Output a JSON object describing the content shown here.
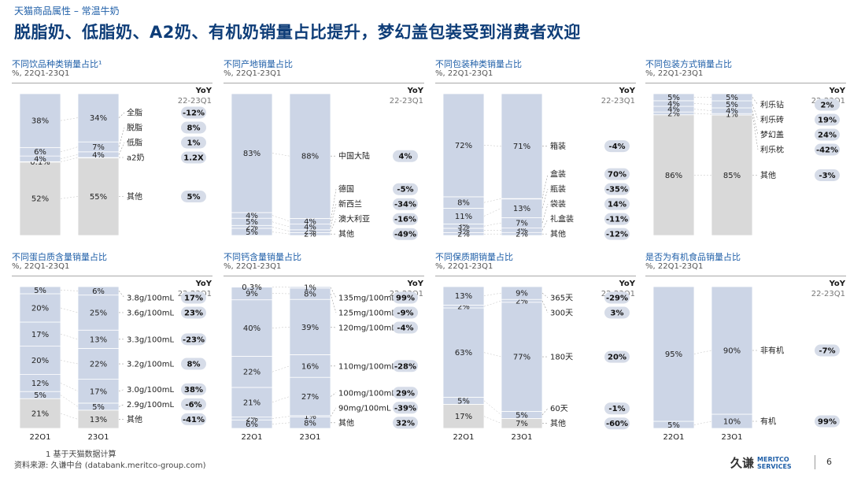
{
  "header": {
    "breadcrumb": "天猫商品属性 – 常温牛奶",
    "title": "脱脂奶、低脂奶、A2奶、有机奶销量占比提升，梦幻盖包装受到消费者欢迎"
  },
  "footer": {
    "footnote": "1   基于天猫数据计算",
    "source": "资料来源: 久谦中台 (databank.meritco-group.com)",
    "logo_cn": "久谦",
    "logo_en_1": "MERITCO",
    "logo_en_2": "SERVICES",
    "page": "6"
  },
  "colors": {
    "bar": "#ccd5e6",
    "bar_alt": "#d9d9d9",
    "pill": "#d6dce8",
    "accent": "#1f5fa8"
  },
  "chart_data": [
    {
      "type": "stacked_bar",
      "title": "不同饮品种类销量占比¹",
      "subtitle": "%, 22Q1-23Q1",
      "yoy_header": "YoY",
      "yoy_period": "22-23Q1",
      "x": [
        "22Q1",
        "23Q1"
      ],
      "show_x": false,
      "segments": [
        {
          "name": "其他",
          "values": [
            52,
            55
          ],
          "labels": [
            "52%",
            "55%"
          ],
          "yoy": "5%",
          "grey": true
        },
        {
          "name": "a2奶",
          "values": [
            0.1,
            0
          ],
          "labels": [
            "0.1%",
            ""
          ],
          "yoy": "1.2X"
        },
        {
          "name": "低脂",
          "values": [
            4,
            4
          ],
          "labels": [
            "4%",
            "4%"
          ],
          "yoy": "1%"
        },
        {
          "name": "脱脂",
          "values": [
            6,
            7
          ],
          "labels": [
            "6%",
            "7%"
          ],
          "yoy": "8%"
        },
        {
          "name": "全脂",
          "values": [
            38,
            34
          ],
          "labels": [
            "38%",
            "34%"
          ],
          "yoy": "-12%"
        }
      ]
    },
    {
      "type": "stacked_bar",
      "title": "不同产地销量占比",
      "subtitle": "%, 22Q1-23Q1",
      "yoy_header": "YoY",
      "yoy_period": "22-23Q1",
      "x": [
        "22Q1",
        "23Q1"
      ],
      "show_x": false,
      "segments": [
        {
          "name": "其他",
          "values": [
            5,
            2
          ],
          "labels": [
            "5%",
            "2%"
          ],
          "yoy": "-49%"
        },
        {
          "name": "澳大利亚",
          "values": [
            2,
            2
          ],
          "labels": [
            "2%",
            "2%"
          ],
          "yoy": "-16%"
        },
        {
          "name": "新西兰",
          "values": [
            5,
            4
          ],
          "labels": [
            "5%",
            "4%"
          ],
          "yoy": "-34%"
        },
        {
          "name": "德国",
          "values": [
            4,
            4
          ],
          "labels": [
            "4%",
            "4%"
          ],
          "yoy": "-5%"
        },
        {
          "name": "中国大陆",
          "values": [
            83,
            88
          ],
          "labels": [
            "83%",
            "88%"
          ],
          "yoy": "4%"
        }
      ]
    },
    {
      "type": "stacked_bar",
      "title": "不同包装种类销量占比",
      "subtitle": "%, 22Q1-23Q1",
      "yoy_header": "YoY",
      "yoy_period": "22-23Q1",
      "x": [
        "22Q1",
        "23Q1"
      ],
      "show_x": false,
      "segments": [
        {
          "name": "其他",
          "values": [
            2,
            2
          ],
          "labels": [
            "2%",
            "2%"
          ],
          "yoy": "-12%"
        },
        {
          "name": "礼盒装",
          "values": [
            3,
            3
          ],
          "labels": [
            "3%",
            "3%"
          ],
          "yoy": "-11%"
        },
        {
          "name": "袋装",
          "values": [
            3,
            7
          ],
          "labels": [
            "3%",
            "7%"
          ],
          "yoy": "14%"
        },
        {
          "name": "瓶装",
          "values": [
            11,
            13
          ],
          "labels": [
            "11%",
            "13%"
          ],
          "yoy": "-35%"
        },
        {
          "name": "盒装",
          "values": [
            8,
            0
          ],
          "labels": [
            "8%",
            ""
          ],
          "yoy": "70%"
        },
        {
          "name": "箱装",
          "values": [
            72,
            71
          ],
          "labels": [
            "72%",
            "71%"
          ],
          "yoy": "-4%"
        }
      ]
    },
    {
      "type": "stacked_bar",
      "title": "不同包装方式销量占比",
      "subtitle": "%, 22Q1-23Q1",
      "yoy_header": "YoY",
      "yoy_period": "22-23Q1",
      "x": [
        "22Q1",
        "23Q1"
      ],
      "show_x": false,
      "segments": [
        {
          "name": "其他",
          "values": [
            86,
            85
          ],
          "labels": [
            "86%",
            "85%"
          ],
          "yoy": "-3%",
          "grey": true
        },
        {
          "name": "利乐枕",
          "values": [
            2,
            1
          ],
          "labels": [
            "2%",
            "1%"
          ],
          "yoy": "-42%"
        },
        {
          "name": "梦幻盖",
          "values": [
            4,
            4
          ],
          "labels": [
            "4%",
            "4%"
          ],
          "yoy": "24%"
        },
        {
          "name": "利乐砖",
          "values": [
            4,
            5
          ],
          "labels": [
            "4%",
            "5%"
          ],
          "yoy": "19%"
        },
        {
          "name": "利乐钻",
          "values": [
            5,
            5
          ],
          "labels": [
            "5%",
            "5%"
          ],
          "yoy": "2%"
        }
      ]
    },
    {
      "type": "stacked_bar",
      "title": "不同蛋白质含量销量占比",
      "subtitle": "%, 22Q1-23Q1",
      "yoy_header": "YoY",
      "yoy_period": "22-23Q1",
      "x": [
        "22Q1",
        "23Q1"
      ],
      "show_x": true,
      "segments": [
        {
          "name": "其他",
          "values": [
            21,
            13
          ],
          "labels": [
            "21%",
            "13%"
          ],
          "yoy": "-41%",
          "grey": true
        },
        {
          "name": "2.9g/100mL",
          "values": [
            5,
            5
          ],
          "labels": [
            "5%",
            "5%"
          ],
          "yoy": "-6%"
        },
        {
          "name": "3.0g/100mL",
          "values": [
            12,
            17
          ],
          "labels": [
            "12%",
            "17%"
          ],
          "yoy": "38%"
        },
        {
          "name": "3.2g/100mL",
          "values": [
            20,
            22
          ],
          "labels": [
            "20%",
            "22%"
          ],
          "yoy": "8%"
        },
        {
          "name": "3.3g/100mL",
          "values": [
            17,
            13
          ],
          "labels": [
            "17%",
            "13%"
          ],
          "yoy": "-23%"
        },
        {
          "name": "3.6g/100mL",
          "values": [
            20,
            25
          ],
          "labels": [
            "20%",
            "25%"
          ],
          "yoy": "23%"
        },
        {
          "name": "3.8g/100mL",
          "values": [
            5,
            6
          ],
          "labels": [
            "5%",
            "6%"
          ],
          "yoy": "17%"
        }
      ]
    },
    {
      "type": "stacked_bar",
      "title": "不同钙含量销量占比",
      "subtitle": "%, 22Q1-23Q1",
      "yoy_header": "YoY",
      "yoy_period": "22-23Q1",
      "x": [
        "22Q1",
        "23Q1"
      ],
      "show_x": true,
      "segments": [
        {
          "name": "其他",
          "values": [
            6,
            8
          ],
          "labels": [
            "6%",
            "8%"
          ],
          "yoy": "32%"
        },
        {
          "name": "90mg/100mL",
          "values": [
            2,
            1
          ],
          "labels": [
            "2%",
            "1%"
          ],
          "yoy": "-39%"
        },
        {
          "name": "100mg/100mL",
          "values": [
            21,
            27
          ],
          "labels": [
            "21%",
            "27%"
          ],
          "yoy": "29%"
        },
        {
          "name": "110mg/100mL",
          "values": [
            22,
            16
          ],
          "labels": [
            "22%",
            "16%"
          ],
          "yoy": "-28%"
        },
        {
          "name": "120mg/100mL",
          "values": [
            40,
            39
          ],
          "labels": [
            "40%",
            "39%"
          ],
          "yoy": "-4%"
        },
        {
          "name": "125mg/100mL",
          "values": [
            9,
            8
          ],
          "labels": [
            "9%",
            "8%"
          ],
          "yoy": "-9%"
        },
        {
          "name": "135mg/100mL",
          "values": [
            0.3,
            1
          ],
          "labels": [
            "0.3%",
            "1%"
          ],
          "yoy": "99%"
        }
      ]
    },
    {
      "type": "stacked_bar",
      "title": "不同保质期销量占比",
      "subtitle": "%, 22Q1-23Q1",
      "yoy_header": "YoY",
      "yoy_period": "22-23Q1",
      "x": [
        "22Q1",
        "23Q1"
      ],
      "show_x": true,
      "segments": [
        {
          "name": "其他",
          "values": [
            17,
            7
          ],
          "labels": [
            "17%",
            "7%"
          ],
          "yoy": "-60%",
          "grey": true
        },
        {
          "name": "60天",
          "values": [
            5,
            5
          ],
          "labels": [
            "5%",
            "5%"
          ],
          "yoy": "-1%"
        },
        {
          "name": "180天",
          "values": [
            63,
            77
          ],
          "labels": [
            "63%",
            "77%"
          ],
          "yoy": "20%"
        },
        {
          "name": "300天",
          "values": [
            2,
            2
          ],
          "labels": [
            "2%",
            "2%"
          ],
          "yoy": "3%"
        },
        {
          "name": "365天",
          "values": [
            13,
            9
          ],
          "labels": [
            "13%",
            "9%"
          ],
          "yoy": "-29%"
        }
      ]
    },
    {
      "type": "stacked_bar",
      "title": "是否为有机食品销量占比",
      "subtitle": "%, 22Q1-23Q1",
      "yoy_header": "YoY",
      "yoy_period": "22-23Q1",
      "x": [
        "22Q1",
        "23Q1"
      ],
      "show_x": true,
      "segments": [
        {
          "name": "有机",
          "values": [
            5,
            10
          ],
          "labels": [
            "5%",
            "10%"
          ],
          "yoy": "99%"
        },
        {
          "name": "非有机",
          "values": [
            95,
            90
          ],
          "labels": [
            "95%",
            "90%"
          ],
          "yoy": "-7%"
        }
      ]
    }
  ]
}
